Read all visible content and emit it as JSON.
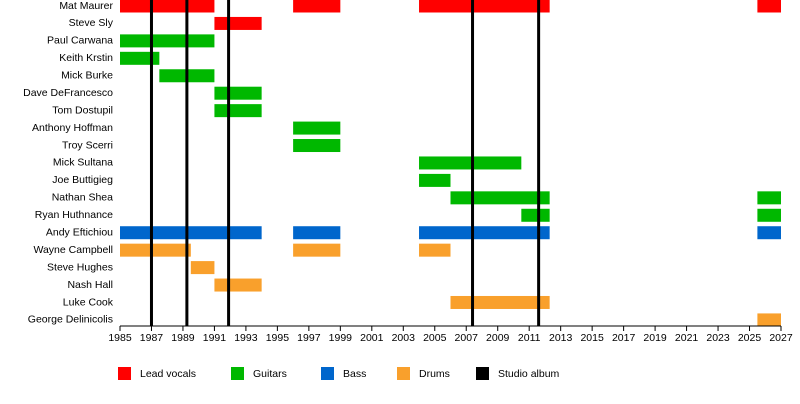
{
  "chart_data": {
    "type": "timeline",
    "categories": [
      "Mat Maurer",
      "Steve Sly",
      "Paul Carwana",
      "Keith Krstin",
      "Mick Burke",
      "Dave DeFrancesco",
      "Tom Dostupil",
      "Anthony Hoffman",
      "Troy Scerri",
      "Mick Sultana",
      "Joe Buttigieg",
      "Nathan Shea",
      "Ryan Huthnance",
      "Andy Eftichiou",
      "Wayne Campbell",
      "Steve Hughes",
      "Nash Hall",
      "Luke Cook",
      "George Delinicolis"
    ],
    "series": [
      {
        "name": "Lead vocals",
        "color": "#ff0000",
        "values": [
          [
            [
              1985,
              1991
            ],
            [
              1996,
              1999
            ],
            [
              2004,
              2012.3
            ],
            [
              2025.5,
              2027
            ]
          ],
          [
            [
              1991,
              1994
            ]
          ],
          [],
          [],
          [],
          [],
          [],
          [],
          [],
          [],
          [],
          [],
          [],
          [],
          [],
          [],
          [],
          [],
          []
        ]
      },
      {
        "name": "Guitars",
        "color": "#00b800",
        "values": [
          [],
          [],
          [
            [
              1985,
              1991
            ]
          ],
          [
            [
              1985,
              1987.5
            ]
          ],
          [
            [
              1987.5,
              1991
            ]
          ],
          [
            [
              1991,
              1994
            ]
          ],
          [
            [
              1991,
              1994
            ]
          ],
          [
            [
              1996,
              1999
            ]
          ],
          [
            [
              1996,
              1999
            ]
          ],
          [
            [
              2004,
              2010.5
            ]
          ],
          [
            [
              2004,
              2006
            ]
          ],
          [
            [
              2006,
              2012.3
            ],
            [
              2025.5,
              2027
            ]
          ],
          [
            [
              2010.5,
              2012.3
            ],
            [
              2025.5,
              2027
            ]
          ],
          [],
          [],
          [],
          [],
          [],
          []
        ]
      },
      {
        "name": "Bass",
        "color": "#0066cc",
        "values": [
          [],
          [],
          [],
          [],
          [],
          [],
          [],
          [],
          [],
          [],
          [],
          [],
          [],
          [
            [
              1985,
              1994
            ],
            [
              1996,
              1999
            ],
            [
              2004,
              2012.3
            ],
            [
              2025.5,
              2027
            ]
          ],
          [],
          [],
          [],
          [],
          []
        ]
      },
      {
        "name": "Drums",
        "color": "#f9a02c",
        "values": [
          [],
          [],
          [],
          [],
          [],
          [],
          [],
          [],
          [],
          [],
          [],
          [],
          [],
          [],
          [
            [
              1985,
              1989.5
            ],
            [
              1996,
              1999
            ],
            [
              2004,
              2006
            ]
          ],
          [
            [
              1989.5,
              1991
            ]
          ],
          [
            [
              1991,
              1994
            ]
          ],
          [
            [
              2006,
              2012.3
            ]
          ],
          [
            [
              2025.5,
              2027
            ]
          ]
        ]
      }
    ],
    "markers": {
      "name": "Studio album",
      "color": "#000000",
      "values": [
        1987,
        1989.25,
        1991.9,
        2007.4,
        2011.6
      ]
    },
    "xlim": [
      1985,
      2027
    ],
    "xticks": [
      1985,
      1987,
      1989,
      1991,
      1993,
      1995,
      1997,
      1999,
      2001,
      2003,
      2005,
      2007,
      2009,
      2011,
      2013,
      2015,
      2017,
      2019,
      2021,
      2023,
      2025,
      2027
    ]
  }
}
